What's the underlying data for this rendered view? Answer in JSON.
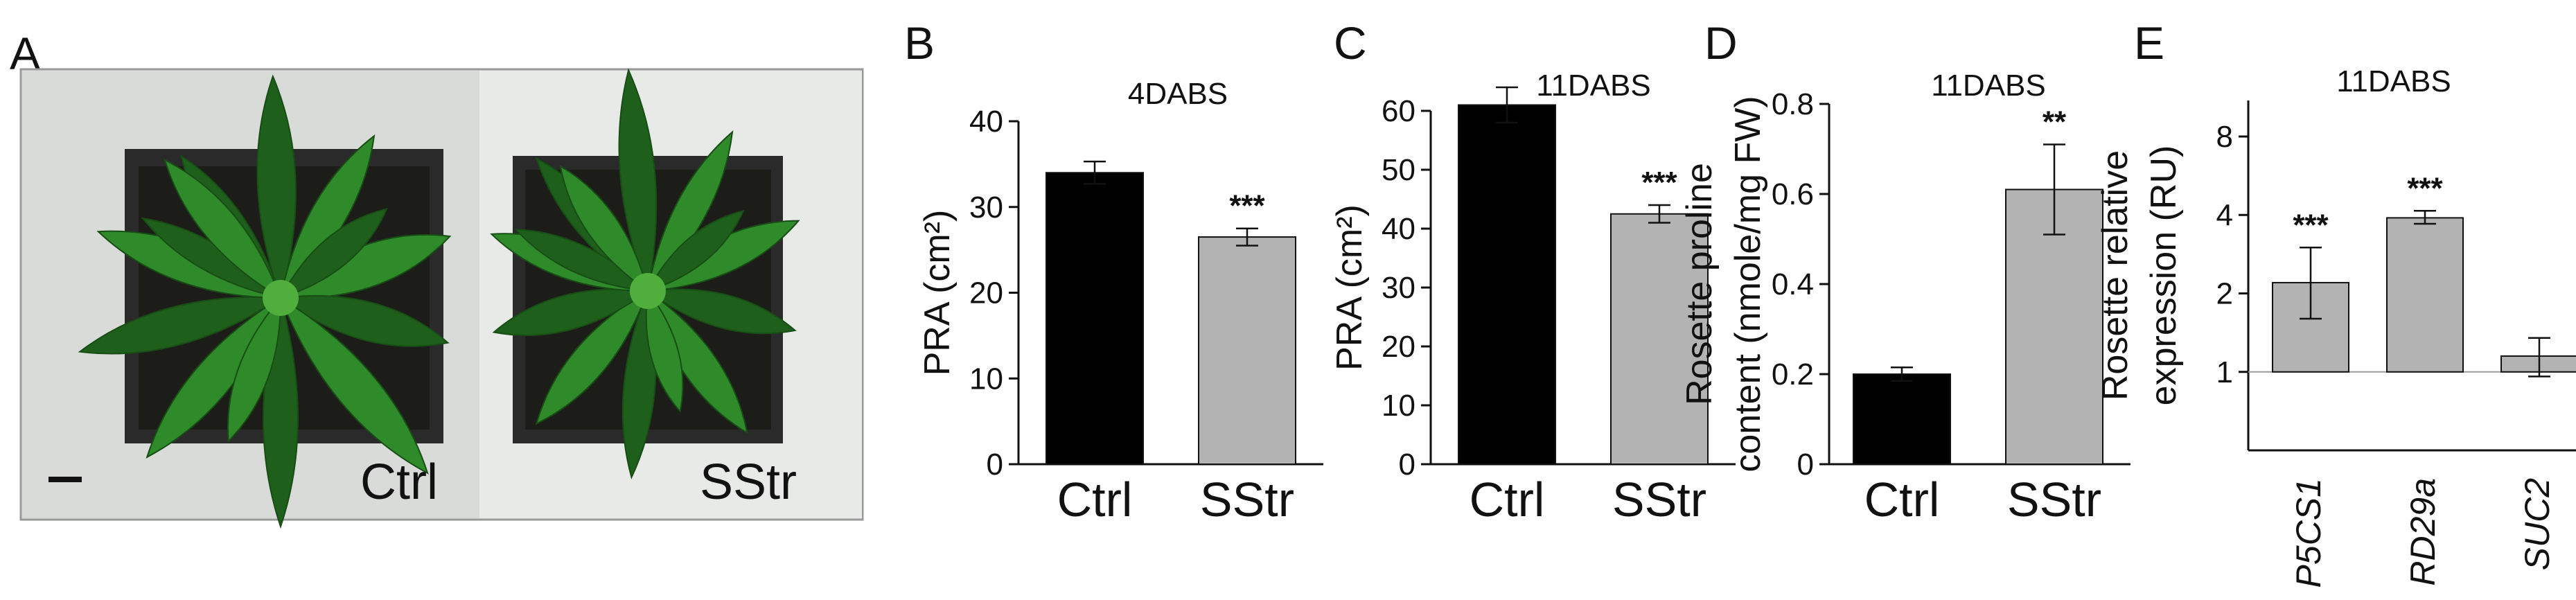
{
  "panel_A": {
    "letter": "A",
    "left_label": "Ctrl",
    "right_label": "SStr",
    "colors": {
      "leaf_dark": "#1f5f1c",
      "leaf": "#2f8a2a",
      "leaf_light": "#4fae3c",
      "pot": "#2a2a2a",
      "soil": "#1a1a16",
      "bg": "#dcdedc"
    }
  },
  "chart_data": [
    {
      "letter": "B",
      "type": "bar",
      "title": "4DABS",
      "ylabel": "PRA (cm²)",
      "categories": [
        "Ctrl",
        "SStr"
      ],
      "values": [
        34,
        26.5
      ],
      "errors": [
        1.3,
        1.0
      ],
      "significance": [
        "",
        "***"
      ],
      "colors": [
        "#000000",
        "#b3b3b3"
      ],
      "ylim": [
        0,
        40
      ],
      "yticks": [
        "0",
        "10",
        "20",
        "30",
        "40"
      ],
      "ytick_values": [
        0,
        10,
        20,
        30,
        40
      ],
      "scale": "linear"
    },
    {
      "letter": "C",
      "type": "bar",
      "title": "11DABS",
      "ylabel": "PRA (cm²)",
      "categories": [
        "Ctrl",
        "SStr"
      ],
      "values": [
        61,
        42.5
      ],
      "errors": [
        3.0,
        1.5
      ],
      "significance": [
        "",
        "***"
      ],
      "colors": [
        "#000000",
        "#b3b3b3"
      ],
      "ylim": [
        0,
        60
      ],
      "yticks": [
        "0",
        "10",
        "20",
        "30",
        "40",
        "50",
        "60"
      ],
      "ytick_values": [
        0,
        10,
        20,
        30,
        40,
        50,
        60
      ],
      "scale": "linear"
    },
    {
      "letter": "D",
      "type": "bar",
      "title": "11DABS",
      "ylabel": "Rosette proline",
      "ylabel2": "content  (nmole/mg FW)",
      "categories": [
        "Ctrl",
        "SStr"
      ],
      "values": [
        0.2,
        0.61
      ],
      "errors": [
        0.015,
        0.1
      ],
      "significance": [
        "",
        "**"
      ],
      "colors": [
        "#000000",
        "#b3b3b3"
      ],
      "ylim": [
        0,
        0.8
      ],
      "yticks": [
        "0",
        "0.2",
        "0.4",
        "0.6",
        "0.8"
      ],
      "ytick_values": [
        0,
        0.2,
        0.4,
        0.6,
        0.8
      ],
      "scale": "linear"
    },
    {
      "letter": "E",
      "type": "bar",
      "title": "11DABS",
      "ylabel": "Rosette relative",
      "ylabel2": "expression (RU)",
      "categories": [
        "P5CS1",
        "RD29a",
        "SUC2"
      ],
      "values": [
        2.2,
        3.9,
        1.15
      ],
      "error_low": [
        1.6,
        3.7,
        0.96
      ],
      "error_high": [
        3.0,
        4.15,
        1.35
      ],
      "significance": [
        "***",
        "***",
        ""
      ],
      "colors": [
        "#b3b3b3",
        "#b3b3b3",
        "#b3b3b3"
      ],
      "ylim": [
        0.5,
        11
      ],
      "yticks": [
        "1",
        "2",
        "4",
        "8"
      ],
      "ytick_values": [
        1,
        2,
        4,
        8
      ],
      "baseline": 1,
      "scale": "log2"
    }
  ]
}
